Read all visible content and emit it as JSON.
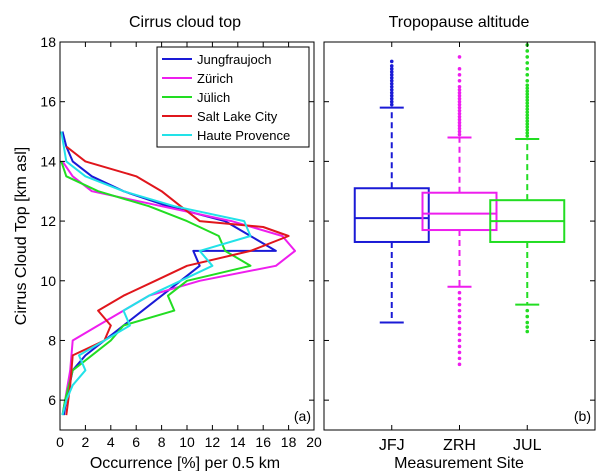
{
  "chart_data": [
    {
      "type": "line",
      "title": "Cirrus cloud top",
      "xlabel": "Occurrence [%] per 0.5 km",
      "ylabel": "Cirrus Cloud Top [km asl]",
      "xlim": [
        0,
        20
      ],
      "ylim": [
        5,
        18
      ],
      "xticks": [
        0,
        2,
        4,
        6,
        8,
        10,
        12,
        14,
        16,
        18,
        20
      ],
      "yticks": [
        6,
        8,
        10,
        12,
        14,
        16,
        18
      ],
      "legend_position": "top-right",
      "panel_label": "(a)",
      "series": [
        {
          "name": "Jungfraujoch",
          "color": "#1a1ad6",
          "points": [
            [
              0.3,
              5.5
            ],
            [
              0.5,
              6.0
            ],
            [
              1.0,
              7.0
            ],
            [
              2.0,
              7.5
            ],
            [
              3.5,
              8.0
            ],
            [
              5.0,
              8.5
            ],
            [
              6.5,
              9.0
            ],
            [
              8.0,
              9.5
            ],
            [
              9.5,
              10.0
            ],
            [
              11.0,
              10.5
            ],
            [
              10.5,
              11.0
            ],
            [
              17.0,
              11.0
            ],
            [
              15.0,
              11.5
            ],
            [
              13.0,
              12.0
            ],
            [
              8.5,
              12.5
            ],
            [
              5.0,
              13.0
            ],
            [
              2.5,
              13.5
            ],
            [
              1.0,
              14.0
            ],
            [
              0.5,
              14.5
            ],
            [
              0.2,
              15.0
            ]
          ]
        },
        {
          "name": "Zürich",
          "color": "#ee1eee",
          "points": [
            [
              0.2,
              5.5
            ],
            [
              0.4,
              6.0
            ],
            [
              0.8,
              7.0
            ],
            [
              1.0,
              8.0
            ],
            [
              3.0,
              8.5
            ],
            [
              5.0,
              9.0
            ],
            [
              7.0,
              9.5
            ],
            [
              11.0,
              10.0
            ],
            [
              17.0,
              10.5
            ],
            [
              18.5,
              11.0
            ],
            [
              17.5,
              11.5
            ],
            [
              13.5,
              12.0
            ],
            [
              8.0,
              12.5
            ],
            [
              2.5,
              13.0
            ],
            [
              1.0,
              13.5
            ],
            [
              0.2,
              14.0
            ]
          ]
        },
        {
          "name": "Jülich",
          "color": "#22dd22",
          "points": [
            [
              0.2,
              5.5
            ],
            [
              0.4,
              6.0
            ],
            [
              1.0,
              7.0
            ],
            [
              2.5,
              7.5
            ],
            [
              4.0,
              8.0
            ],
            [
              5.0,
              8.5
            ],
            [
              9.0,
              9.0
            ],
            [
              8.5,
              9.5
            ],
            [
              10.0,
              10.0
            ],
            [
              15.0,
              10.5
            ],
            [
              13.0,
              11.0
            ],
            [
              12.5,
              11.5
            ],
            [
              10.0,
              12.0
            ],
            [
              7.0,
              12.5
            ],
            [
              3.0,
              13.0
            ],
            [
              0.5,
              13.5
            ],
            [
              0.1,
              14.0
            ]
          ]
        },
        {
          "name": "Salt Lake City",
          "color": "#e0161c",
          "points": [
            [
              0.5,
              5.5
            ],
            [
              0.8,
              6.5
            ],
            [
              1.0,
              7.5
            ],
            [
              3.5,
              8.0
            ],
            [
              4.0,
              8.5
            ],
            [
              3.0,
              9.0
            ],
            [
              5.0,
              9.5
            ],
            [
              7.5,
              10.0
            ],
            [
              10.0,
              10.5
            ],
            [
              15.0,
              11.0
            ],
            [
              18.0,
              11.5
            ],
            [
              16.0,
              11.8
            ],
            [
              11.0,
              12.0
            ],
            [
              9.5,
              12.5
            ],
            [
              8.0,
              13.0
            ],
            [
              6.0,
              13.5
            ],
            [
              2.0,
              14.0
            ],
            [
              0.5,
              14.5
            ]
          ]
        },
        {
          "name": "Haute Provence",
          "color": "#22e2e8",
          "points": [
            [
              0.2,
              5.5
            ],
            [
              0.5,
              6.0
            ],
            [
              1.0,
              6.5
            ],
            [
              2.0,
              7.0
            ],
            [
              1.5,
              7.5
            ],
            [
              3.5,
              8.0
            ],
            [
              5.5,
              8.5
            ],
            [
              5.0,
              9.0
            ],
            [
              7.0,
              9.5
            ],
            [
              9.5,
              10.0
            ],
            [
              12.0,
              10.5
            ],
            [
              11.0,
              11.0
            ],
            [
              15.0,
              11.5
            ],
            [
              14.5,
              12.0
            ],
            [
              9.0,
              12.5
            ],
            [
              5.0,
              13.0
            ],
            [
              2.0,
              13.5
            ],
            [
              0.5,
              14.0
            ],
            [
              0.1,
              15.0
            ]
          ]
        }
      ]
    },
    {
      "type": "box",
      "title": "Tropopause altitude",
      "xlabel": "Measurement Site",
      "ylim": [
        5,
        18
      ],
      "yticks": [
        6,
        8,
        10,
        12,
        14,
        16,
        18
      ],
      "categories": [
        "JFJ",
        "ZRH",
        "JUL"
      ],
      "panel_label": "(b)",
      "boxes": [
        {
          "category": "JFJ",
          "color": "#1a1ad6",
          "whisker_low": 8.6,
          "q1": 11.3,
          "median": 12.1,
          "q3": 13.1,
          "whisker_high": 15.8,
          "outliers_low": [],
          "outliers_high": [
            15.9,
            16.0,
            16.1,
            16.2,
            16.3,
            16.4,
            16.5,
            16.6,
            16.7,
            16.8,
            16.9,
            17.0,
            17.1,
            17.2,
            17.35
          ]
        },
        {
          "category": "ZRH",
          "color": "#ee1eee",
          "whisker_low": 9.8,
          "q1": 11.7,
          "median": 12.25,
          "q3": 12.95,
          "whisker_high": 14.8,
          "outliers_low": [
            9.6,
            9.4,
            9.2,
            9.0,
            8.8,
            8.6,
            8.4,
            8.2,
            8.0,
            7.8,
            7.6,
            7.4,
            7.2
          ],
          "outliers_high": [
            14.9,
            15.0,
            15.1,
            15.2,
            15.3,
            15.4,
            15.5,
            15.6,
            15.7,
            15.8,
            15.9,
            16.0,
            16.1,
            16.2,
            16.3,
            16.4,
            16.5,
            16.7,
            16.9,
            17.1,
            17.5
          ]
        },
        {
          "category": "JUL",
          "color": "#22dd22",
          "whisker_low": 9.2,
          "q1": 11.3,
          "median": 12.0,
          "q3": 12.7,
          "whisker_high": 14.75,
          "outliers_low": [
            9.0,
            8.8,
            8.6,
            8.45,
            8.3
          ],
          "outliers_high": [
            14.85,
            14.95,
            15.05,
            15.15,
            15.25,
            15.35,
            15.45,
            15.55,
            15.65,
            15.75,
            15.85,
            15.95,
            16.05,
            16.15,
            16.25,
            16.35,
            16.45,
            16.55,
            16.7,
            16.9,
            17.1,
            17.3,
            17.5,
            17.7,
            17.9
          ]
        }
      ]
    }
  ]
}
